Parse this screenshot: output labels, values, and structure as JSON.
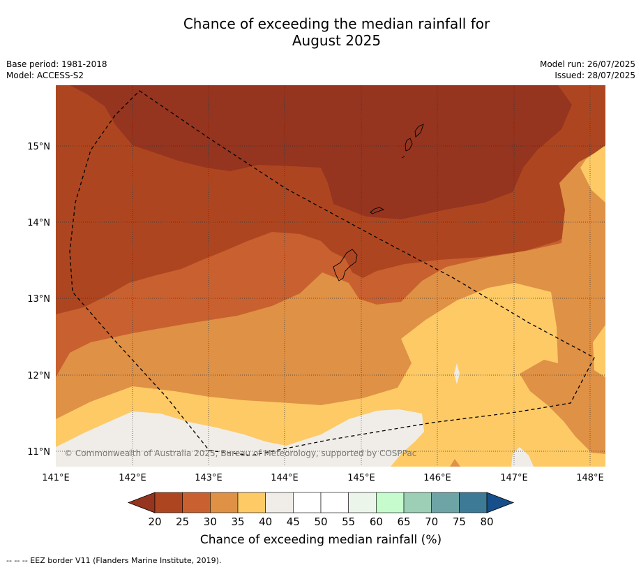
{
  "title_line1": "Chance of exceeding the median rainfall for",
  "title_line2": "August 2025",
  "meta_left": {
    "base_period": "Base period: 1981-2018",
    "model": "Model: ACCESS-S2"
  },
  "meta_right": {
    "model_run": "Model run: 26/07/2025",
    "issued": "Issued: 28/07/2025"
  },
  "map": {
    "lon_ticks": [
      "141°E",
      "142°E",
      "143°E",
      "144°E",
      "145°E",
      "146°E",
      "147°E",
      "148°E"
    ],
    "lat_ticks": [
      "15°N",
      "14°N",
      "13°N",
      "12°N",
      "11°N"
    ],
    "copyright": "© Commonwealth of Australia 2025, Bureau of Meteorology, supported by COSPPac",
    "layers": [
      {
        "range": "25-30",
        "color": "#c9602f"
      },
      {
        "range": "20-25",
        "color": "#ad4620"
      },
      {
        "range": "<20",
        "color": "#95341f"
      },
      {
        "range": "30-35",
        "color": "#df9146"
      },
      {
        "range": "35-40",
        "color": "#fdca66"
      },
      {
        "range": "40-45",
        "color": "#f0ede8"
      }
    ]
  },
  "colorbar": {
    "label": "Chance of exceeding median rainfall (%)",
    "ticks": [
      "20",
      "25",
      "30",
      "35",
      "40",
      "45",
      "50",
      "55",
      "60",
      "65",
      "70",
      "75",
      "80"
    ],
    "colors": [
      "#ad4620",
      "#c9602f",
      "#df9146",
      "#fdca66",
      "#f0ede8",
      "#ffffff",
      "#ffffff",
      "#ebf5ea",
      "#c6fbcd",
      "#9ccfb5",
      "#6ea4a5",
      "#3c7a96"
    ],
    "under_color": "#95341f",
    "over_color": "#164f8a"
  },
  "footnote": "--  --  -- EEZ border V11 (Flanders Marine Institute, 2019)."
}
